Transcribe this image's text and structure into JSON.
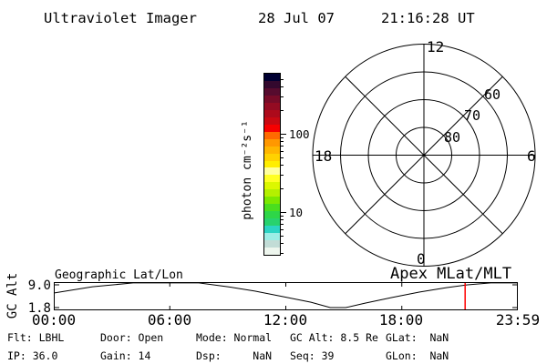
{
  "header": {
    "app_title": "Ultraviolet Imager",
    "date": "28 Jul 07",
    "time": "21:16:28 UT"
  },
  "colorbar": {
    "unit_label": "photon cm⁻²s⁻¹",
    "scale": "log",
    "major_ticks": [
      "100",
      "10"
    ],
    "colors": [
      "#000032",
      "#33082e",
      "#560b2e",
      "#770b28",
      "#940b22",
      "#ad0a1b",
      "#c90912",
      "#f70000",
      "#ff6a00",
      "#ff9800",
      "#ffb600",
      "#ffd200",
      "#ffee00",
      "#ffff9e",
      "#ffff24",
      "#dcf800",
      "#b4f000",
      "#7ce800",
      "#4ade1e",
      "#2ed648",
      "#28d26e",
      "#2cd4c4",
      "#9ceee6",
      "#c2dcd6",
      "#eef6ee"
    ]
  },
  "polar": {
    "mlt_top": "12",
    "mlt_left": "18",
    "mlt_right": "6",
    "mlt_bottom": "0",
    "lat_labels": [
      "60",
      "70",
      "80"
    ],
    "rings_lat": [
      80,
      70,
      60,
      50
    ],
    "spoke_angles_deg": [
      0,
      45,
      90,
      135
    ]
  },
  "strip": {
    "left_title": "Geographic Lat/Lon",
    "right_title": "Apex MLat/MLT",
    "y_axis_label": "GC Alt",
    "y_ticks": [
      "9.0",
      "1.8"
    ],
    "x_ticks": [
      "00:00",
      "06:00",
      "12:00",
      "18:00",
      "23:59"
    ]
  },
  "status": {
    "flt": "Flt: LBHL",
    "door": "Door: Open",
    "mode": "Mode: Normal",
    "gc_alt": "GC Alt: 8.5 Re",
    "glat": "GLat:  NaN",
    "ip": "IP: 36.0",
    "gain": "Gain: 14",
    "dsp": "Dsp:     NaN",
    "seq": "Seq: 39",
    "glon": "GLon:  NaN"
  },
  "chart_data": {
    "type": "line",
    "title": "Spacecraft geocentric altitude vs universal time",
    "ylabel": "GC Alt (Re)",
    "x_range_hours": [
      0,
      24
    ],
    "y_tick_values_re": [
      9.0,
      1.8
    ],
    "series": [
      {
        "name": "GC Alt",
        "x_hours": [
          0,
          2,
          4.1,
          7.5,
          9,
          10.4,
          11.8,
          13.3,
          14.3,
          15.1,
          16.1,
          17.5,
          18.9,
          20.3,
          21.4,
          22.6,
          24
        ],
        "alt_re": [
          6.4,
          8.4,
          9.6,
          9.6,
          8.4,
          7.0,
          5.3,
          3.5,
          1.8,
          1.8,
          3.2,
          5.0,
          6.7,
          8.1,
          9.0,
          9.6,
          9.6
        ]
      }
    ],
    "cursor_hour": 21.2746,
    "cursor_color": "#ff0000"
  }
}
